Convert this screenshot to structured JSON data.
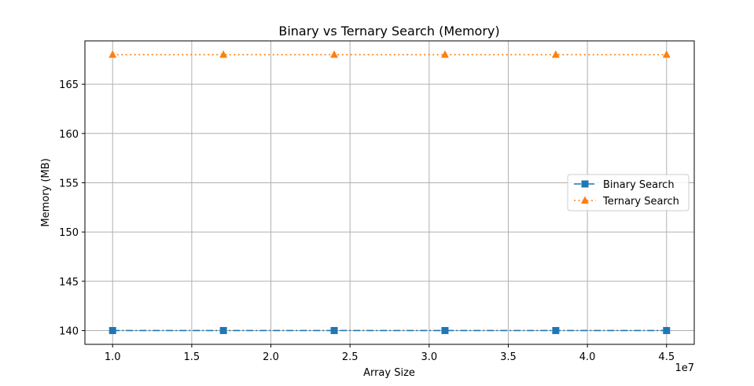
{
  "chart_data": {
    "type": "line",
    "title": "Binary vs Ternary Search (Memory)",
    "xlabel": "Array Size",
    "ylabel": "Memory (MB)",
    "x_offset_label": "1e7",
    "x": [
      10000000,
      17000000,
      24000000,
      31000000,
      38000000,
      45000000
    ],
    "xlim": [
      8250000,
      46750000
    ],
    "ylim": [
      138.6,
      169.4
    ],
    "x_ticks": [
      10000000,
      15000000,
      20000000,
      25000000,
      30000000,
      35000000,
      40000000,
      45000000
    ],
    "x_tick_labels": [
      "1.0",
      "1.5",
      "2.0",
      "2.5",
      "3.0",
      "3.5",
      "4.0",
      "4.5"
    ],
    "y_ticks": [
      140,
      145,
      150,
      155,
      160,
      165
    ],
    "y_tick_labels": [
      "140",
      "145",
      "150",
      "155",
      "160",
      "165"
    ],
    "grid": true,
    "legend_position": "center-right",
    "series": [
      {
        "name": "Binary Search",
        "values": [
          140,
          140,
          140,
          140,
          140,
          140
        ],
        "color": "#1f77b4",
        "line_style": "dashdot",
        "marker": "square"
      },
      {
        "name": "Ternary Search",
        "values": [
          168,
          168,
          168,
          168,
          168,
          168
        ],
        "color": "#ff7f0e",
        "line_style": "dotted",
        "marker": "triangle"
      }
    ]
  }
}
